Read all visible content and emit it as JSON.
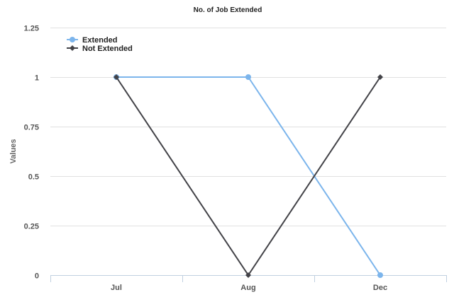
{
  "chart_data": {
    "type": "line",
    "title": "No. of Job Extended",
    "xlabel": "",
    "ylabel": "Values",
    "categories": [
      "Jul",
      "Aug",
      "Dec"
    ],
    "ylim": [
      0,
      1.25
    ],
    "yticks": [
      "0",
      "0.25",
      "0.5",
      "0.75",
      "1",
      "1.25"
    ],
    "grid": true,
    "legend_position": "top-left",
    "series": [
      {
        "name": "Extended",
        "values": [
          1,
          1,
          0
        ],
        "color": "#7cb5ec",
        "marker": "circle"
      },
      {
        "name": "Not Extended",
        "values": [
          1,
          0,
          1
        ],
        "color": "#434348",
        "marker": "diamond"
      }
    ]
  }
}
